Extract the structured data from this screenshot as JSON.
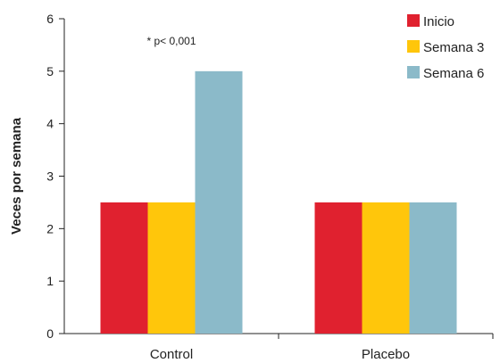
{
  "chart_data": {
    "type": "bar",
    "categories": [
      "Control",
      "Placebo"
    ],
    "series": [
      {
        "name": "Inicio",
        "color": "#e0212f",
        "values": [
          2.5,
          2.5
        ]
      },
      {
        "name": "Semana 3",
        "color": "#ffc60b",
        "values": [
          2.5,
          2.5
        ]
      },
      {
        "name": "Semana 6",
        "color": "#8bbac9",
        "values": [
          5,
          2.5
        ]
      }
    ],
    "ylabel": "Veces por semana",
    "xlabel": "",
    "ylim": [
      0,
      6
    ],
    "yticks": [
      0,
      1,
      2,
      3,
      4,
      5,
      6
    ],
    "grid": false,
    "legend_position": "top-right",
    "annotation": {
      "text": "* p< 0,001",
      "category": "Control"
    }
  }
}
